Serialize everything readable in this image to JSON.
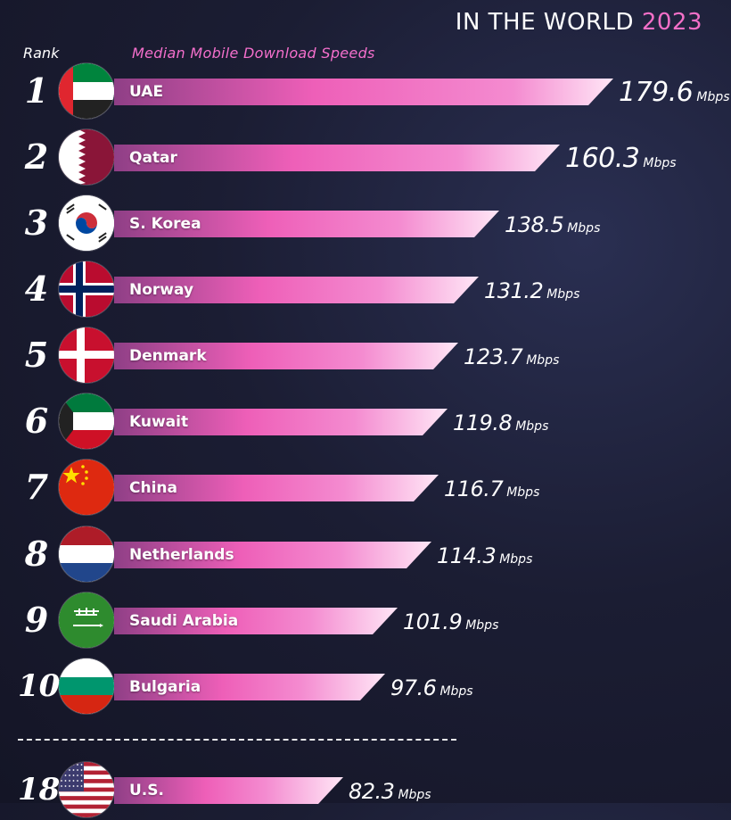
{
  "header": {
    "subtitle": "IN THE WORLD",
    "year": "2023",
    "rank_label": "Rank",
    "metric_label": "Median Mobile Download Speeds"
  },
  "colors": {
    "accent_pink": "#f36fc7",
    "bar_dark": "#8f3f86",
    "bar_mid": "#ee5fb8",
    "bar_light": "#ffe6f6"
  },
  "chart_data": {
    "type": "bar",
    "orientation": "horizontal",
    "unit": "Mbps",
    "xlim": [
      0,
      179.6
    ],
    "grid": false,
    "ranks": [
      "1",
      "2",
      "3",
      "4",
      "5",
      "6",
      "7",
      "8",
      "9",
      "10",
      "18"
    ],
    "categories": [
      "UAE",
      "Qatar",
      "S. Korea",
      "Norway",
      "Denmark",
      "Kuwait",
      "China",
      "Netherlands",
      "Saudi Arabia",
      "Bulgaria",
      "U.S."
    ],
    "values": [
      179.6,
      160.3,
      138.5,
      131.2,
      123.7,
      119.8,
      116.7,
      114.3,
      101.9,
      97.6,
      82.3
    ],
    "value_labels": [
      "179.6",
      "160.3",
      "138.5",
      "131.2",
      "123.7",
      "119.8",
      "116.7",
      "114.3",
      "101.9",
      "97.6",
      "82.3"
    ],
    "flags": [
      "uae-flag-icon",
      "qatar-flag-icon",
      "south-korea-flag-icon",
      "norway-flag-icon",
      "denmark-flag-icon",
      "kuwait-flag-icon",
      "china-flag-icon",
      "netherlands-flag-icon",
      "saudi-arabia-flag-icon",
      "bulgaria-flag-icon",
      "usa-flag-icon"
    ]
  }
}
